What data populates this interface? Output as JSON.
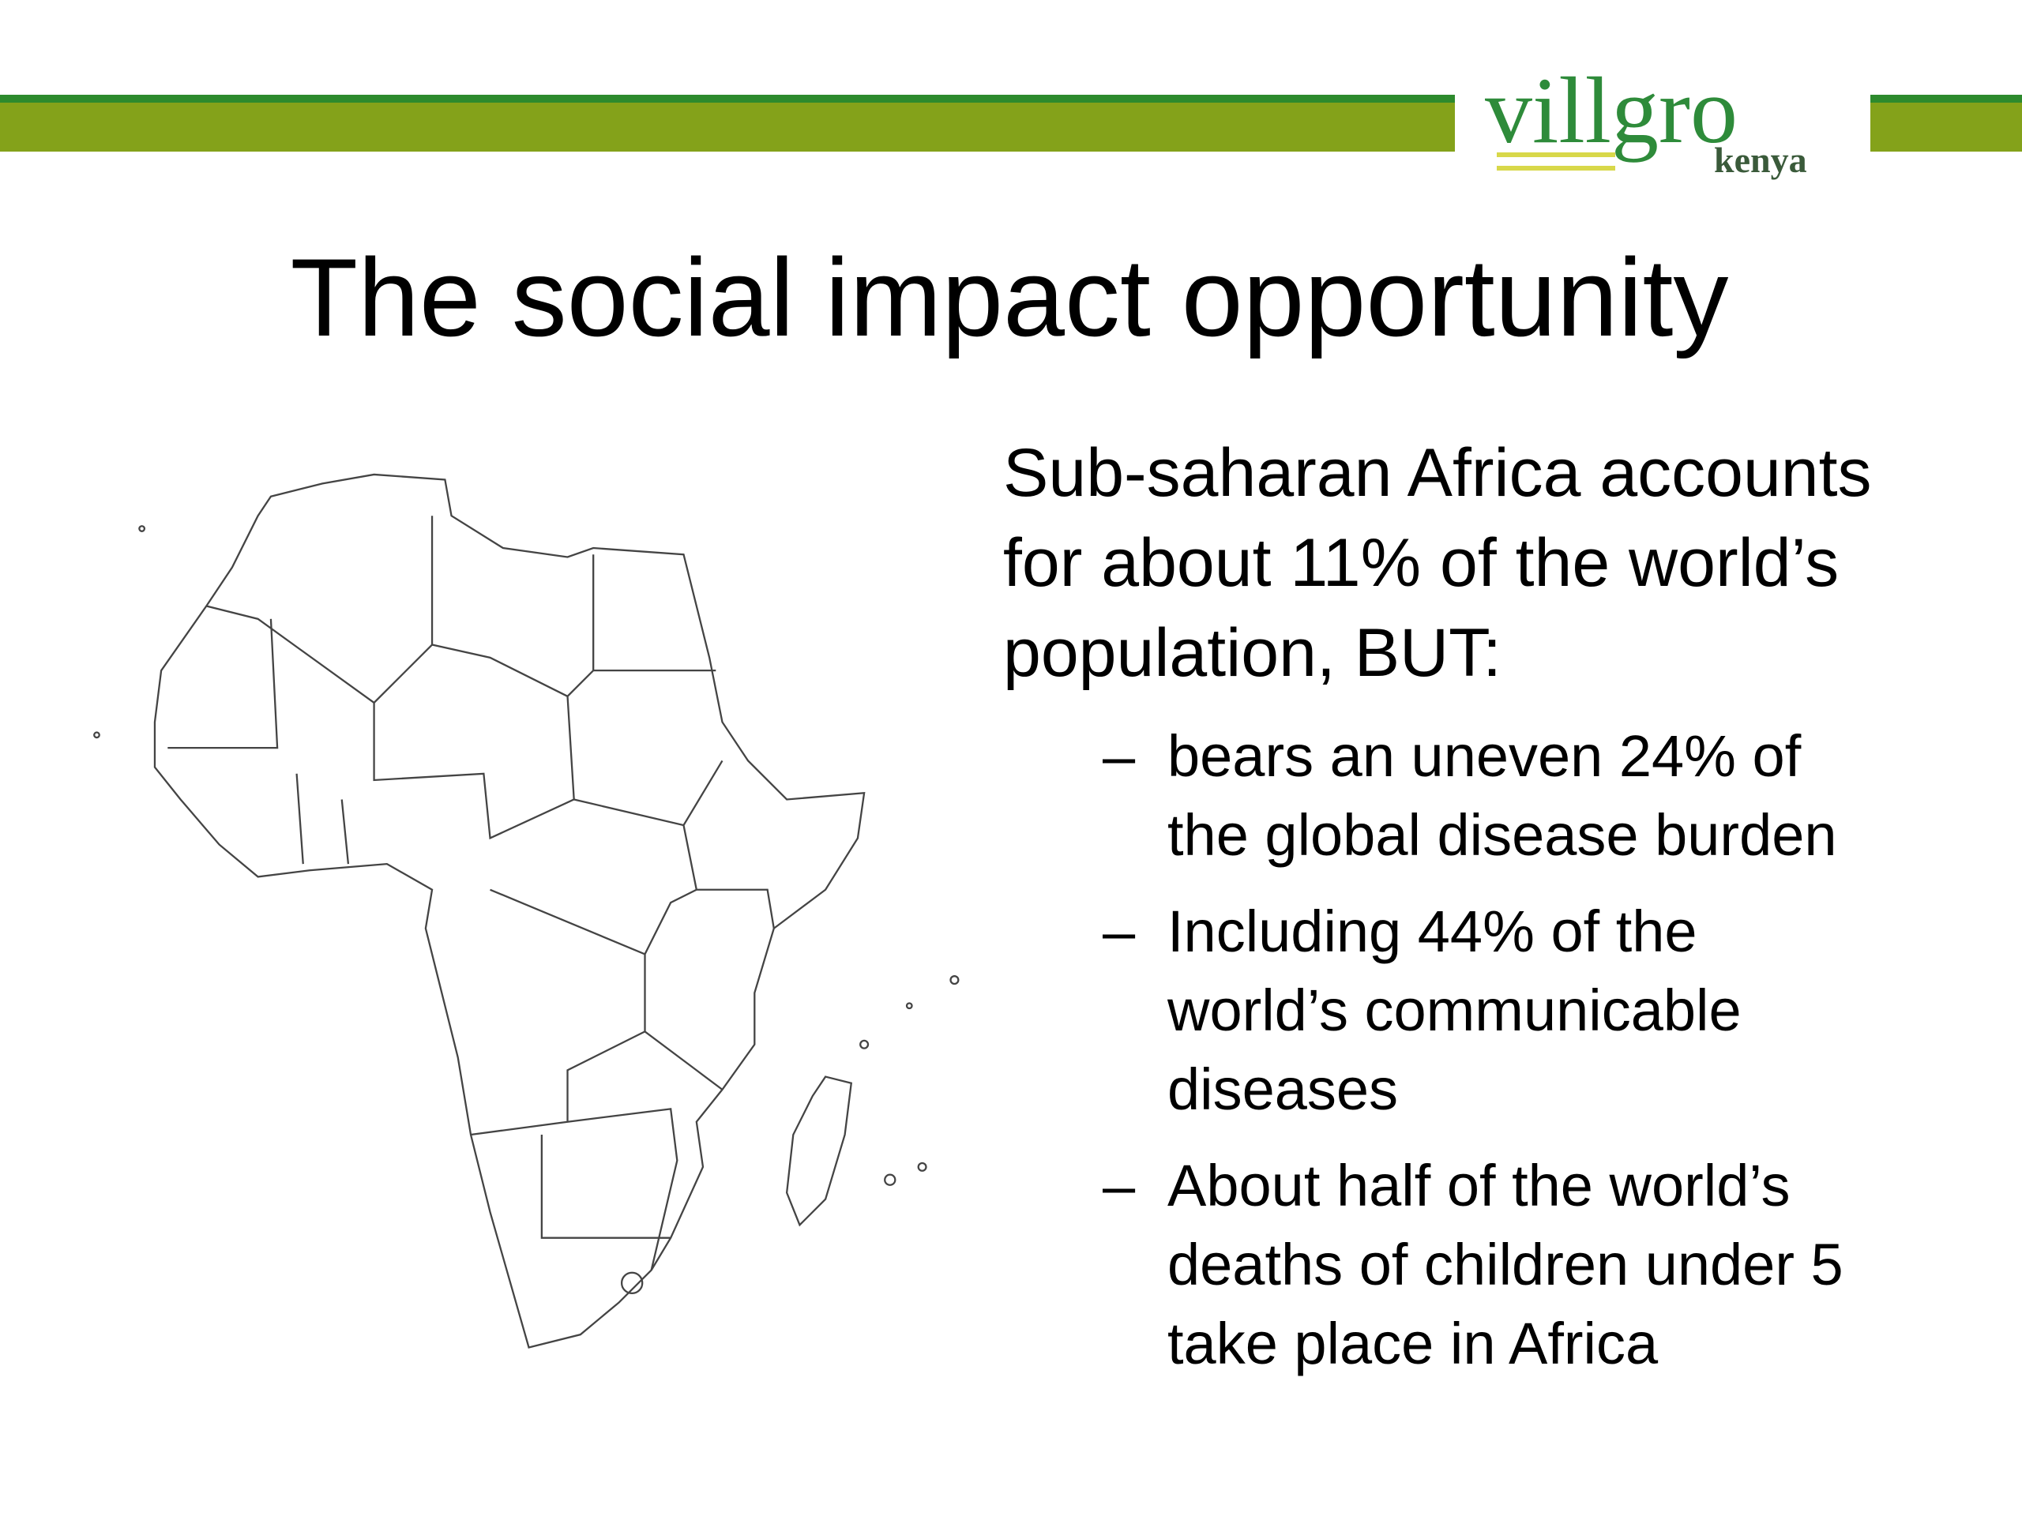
{
  "logo": {
    "name": "villgro",
    "region": "kenya"
  },
  "title": "The social impact opportunity",
  "body": {
    "lines": [
      "Sub-saharan Africa accounts",
      "for about 11% of the world’s",
      "population, BUT:"
    ]
  },
  "bullets": [
    {
      "marker": "–",
      "lines": [
        "bears an uneven 24% of",
        "the global disease burden"
      ]
    },
    {
      "marker": "–",
      "lines": [
        "Including 44% of the",
        "world’s communicable",
        "diseases"
      ]
    },
    {
      "marker": "–",
      "lines": [
        "About half of the world’s",
        "deaths of children under 5",
        "take place in Africa"
      ]
    }
  ]
}
